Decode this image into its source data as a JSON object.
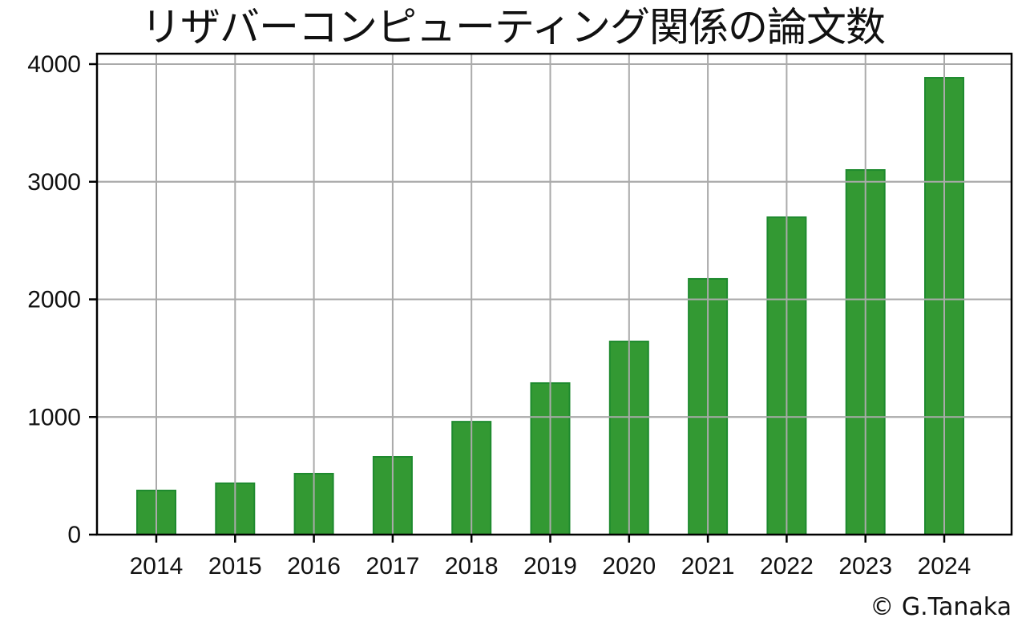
{
  "chart_data": {
    "type": "bar",
    "title": "リザバーコンピューティング関係の論文数",
    "xlabel": "",
    "ylabel": "",
    "categories": [
      "2014",
      "2015",
      "2016",
      "2017",
      "2018",
      "2019",
      "2020",
      "2021",
      "2022",
      "2023",
      "2024"
    ],
    "values": [
      375,
      436,
      518,
      661,
      960,
      1288,
      1642,
      2174,
      2698,
      3100,
      3884
    ],
    "ylim": [
      0,
      4090
    ],
    "yticks": [
      0,
      1000,
      2000,
      3000,
      4000
    ],
    "grid": true,
    "legend": null,
    "bar_color": "#339933",
    "bar_edge_color": "#1e8a2e",
    "grid_color": "#aaaaaa"
  },
  "footer": {
    "copyright": "© G.Tanaka"
  }
}
